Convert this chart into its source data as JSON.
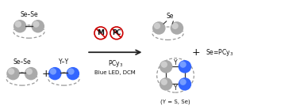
{
  "bg_color": "#ffffff",
  "text_color": "#111111",
  "gray_sphere_base": "#aaaaaa",
  "gray_sphere_hi": "#e0e0e0",
  "blue_sphere_base": "#3366ff",
  "blue_sphere_hi": "#99bbff",
  "red_color": "#cc0000",
  "dashed_color": "#999999",
  "arrow_color": "#222222",
  "figsize": [
    3.78,
    1.38
  ],
  "dpi": 100,
  "xlim": [
    0,
    10
  ],
  "ylim": [
    0,
    3.65
  ]
}
